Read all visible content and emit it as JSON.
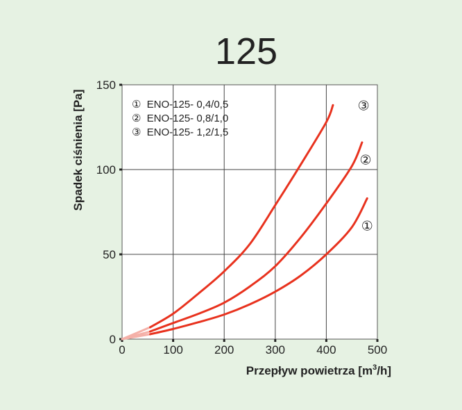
{
  "chart_data": {
    "type": "line",
    "title": "125",
    "xlabel": "Przepływ  powietrza [m",
    "xlabel_sup": "3",
    "xlabel_tail": "/h]",
    "ylabel": "Spadek  ciśnienia [Pa]",
    "xlim": [
      0,
      500
    ],
    "ylim": [
      0,
      150
    ],
    "x_ticks": [
      0,
      100,
      200,
      300,
      400,
      500
    ],
    "y_ticks": [
      0,
      50,
      100,
      150
    ],
    "grid": true,
    "legend_placement": "top-left",
    "legend": [
      {
        "marker": "①",
        "label": "ENO-125- 0,4/0,5"
      },
      {
        "marker": "②",
        "label": "ENO-125- 0,8/1,0"
      },
      {
        "marker": "③",
        "label": "ENO-125- 1,2/1,5"
      }
    ],
    "series": [
      {
        "marker": "①",
        "color": "#e8321e",
        "faint_color": "#f4b0a8",
        "faint_until_x": 55,
        "x": [
          0,
          55,
          100,
          150,
          200,
          250,
          300,
          350,
          400,
          450,
          480
        ],
        "y": [
          0,
          2.9,
          6,
          10,
          14.5,
          20.5,
          28,
          37.5,
          50,
          66,
          83
        ]
      },
      {
        "marker": "②",
        "color": "#e8321e",
        "faint_color": "#f4b0a8",
        "faint_until_x": 55,
        "x": [
          0,
          55,
          100,
          150,
          200,
          250,
          300,
          350,
          400,
          450,
          470
        ],
        "y": [
          0,
          4.5,
          9.5,
          15,
          21.5,
          31,
          43,
          60,
          80,
          102,
          116
        ]
      },
      {
        "marker": "③",
        "color": "#e8321e",
        "faint_color": "#f4b0a8",
        "faint_until_x": 55,
        "x": [
          0,
          55,
          100,
          150,
          200,
          250,
          300,
          350,
          400,
          413
        ],
        "y": [
          0,
          7,
          15,
          27,
          40,
          56,
          79,
          103,
          128,
          138
        ]
      }
    ],
    "curve_labels": [
      {
        "marker": "①",
        "x": 480,
        "y": 67
      },
      {
        "marker": "②",
        "x": 477,
        "y": 106
      },
      {
        "marker": "③",
        "x": 473,
        "y": 138
      }
    ]
  }
}
